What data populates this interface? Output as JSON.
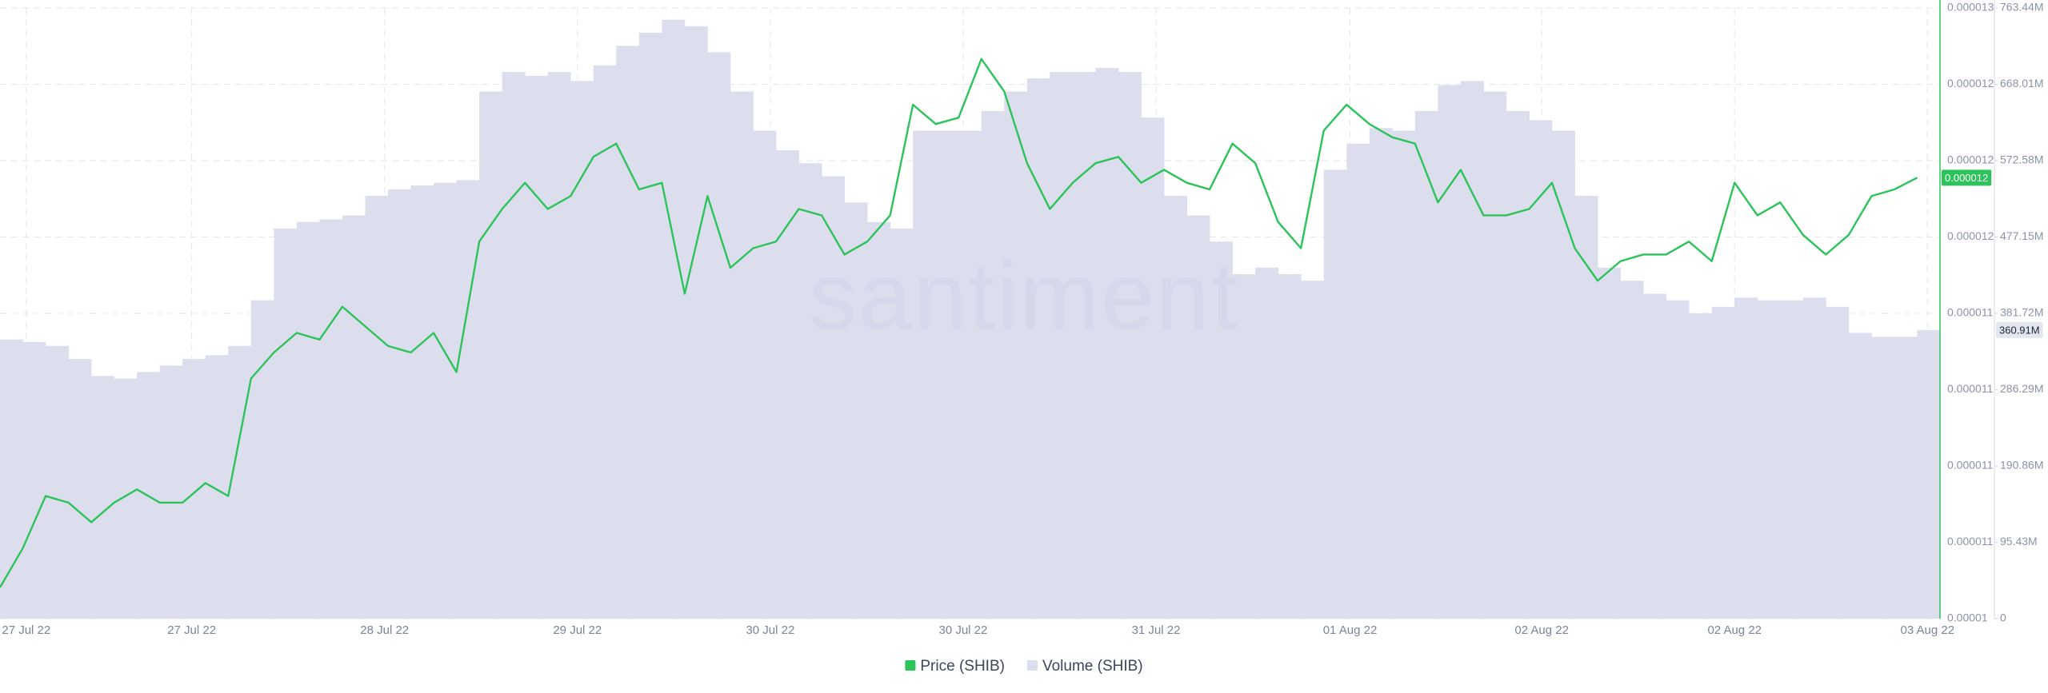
{
  "chart_data": {
    "type": "combo",
    "watermark": "santiment",
    "x": [
      0,
      2,
      4,
      6,
      8,
      10,
      12,
      14,
      16,
      18,
      20,
      22,
      24,
      26,
      28,
      30,
      32,
      34,
      36,
      38,
      40,
      42,
      44,
      46,
      48,
      50,
      52,
      54,
      56,
      58,
      60,
      62,
      64,
      66,
      68,
      70,
      72,
      74,
      76,
      78,
      80,
      82,
      84,
      86,
      88,
      90,
      92,
      94,
      96,
      98,
      100,
      102,
      104,
      106,
      108,
      110,
      112,
      114,
      116,
      118,
      120,
      122,
      124,
      126,
      128,
      130,
      132,
      134,
      136,
      138,
      140,
      142,
      144,
      146,
      148,
      150,
      152,
      154,
      156,
      158,
      160,
      162,
      164,
      166,
      168
    ],
    "xlim": [
      0,
      170
    ],
    "xticks": [
      {
        "value": 2.3,
        "label": "27 Jul 22"
      },
      {
        "value": 16.8,
        "label": "27 Jul 22"
      },
      {
        "value": 33.7,
        "label": "28 Jul 22"
      },
      {
        "value": 50.6,
        "label": "29 Jul 22"
      },
      {
        "value": 67.5,
        "label": "30 Jul 22"
      },
      {
        "value": 84.4,
        "label": "30 Jul 22"
      },
      {
        "value": 101.3,
        "label": "31 Jul 22"
      },
      {
        "value": 118.3,
        "label": "01 Aug 22"
      },
      {
        "value": 135.1,
        "label": "02 Aug 22"
      },
      {
        "value": 152,
        "label": "02 Aug 22"
      },
      {
        "value": 168.9,
        "label": "03 Aug 22"
      }
    ],
    "ylim": [
      1.025e-05,
      1.265e-05
    ],
    "yticks": [
      {
        "value": 1.025e-05,
        "label": "0.00001"
      },
      {
        "value": 1.055e-05,
        "label": "0.000011"
      },
      {
        "value": 1.085e-05,
        "label": "0.000011"
      },
      {
        "value": 1.115e-05,
        "label": "0.000011"
      },
      {
        "value": 1.145e-05,
        "label": "0.000011"
      },
      {
        "value": 1.175e-05,
        "label": "0.000012"
      },
      {
        "value": 1.205e-05,
        "label": "0.000012"
      },
      {
        "value": 1.235e-05,
        "label": "0.000012"
      },
      {
        "value": 1.265e-05,
        "label": "0.000013"
      }
    ],
    "y2lim": [
      0,
      763.44
    ],
    "y2ticks": [
      0,
      {
        "value": 95.43,
        "label": "95.43M"
      },
      {
        "value": 190.86,
        "label": "190.86M"
      },
      {
        "value": 286.29,
        "label": "286.29M"
      },
      {
        "value": 381.72,
        "label": "381.72M"
      },
      {
        "value": 477.15,
        "label": "477.15M"
      },
      {
        "value": 572.58,
        "label": "572.58M"
      },
      {
        "value": 668.01,
        "label": "668.01M"
      },
      {
        "value": 763.44,
        "label": "763.44M"
      }
    ],
    "grid": true,
    "legend": "bottom",
    "series": [
      {
        "name": "Price (SHIB)",
        "type": "line",
        "color": "#2bc35a",
        "last_label": "0.000012",
        "values": [
          1.0373e-05,
          1.0527e-05,
          1.0732e-05,
          1.0706e-05,
          1.0629e-05,
          1.0706e-05,
          1.0758e-05,
          1.0706e-05,
          1.0706e-05,
          1.0783e-05,
          1.0732e-05,
          1.1194e-05,
          1.1296e-05,
          1.1373e-05,
          1.1347e-05,
          1.1476e-05,
          1.1399e-05,
          1.1322e-05,
          1.1296e-05,
          1.1373e-05,
          1.1219e-05,
          1.1732e-05,
          1.186e-05,
          1.1963e-05,
          1.186e-05,
          1.1911e-05,
          1.2065e-05,
          1.2117e-05,
          1.1937e-05,
          1.1963e-05,
          1.1527e-05,
          1.1911e-05,
          1.1629e-05,
          1.1706e-05,
          1.1732e-05,
          1.186e-05,
          1.1835e-05,
          1.1681e-05,
          1.1732e-05,
          1.1835e-05,
          1.227e-05,
          1.2194e-05,
          1.2219e-05,
          1.245e-05,
          1.2322e-05,
          1.204e-05,
          1.186e-05,
          1.1963e-05,
          1.204e-05,
          1.2065e-05,
          1.1963e-05,
          1.2014e-05,
          1.1963e-05,
          1.1937e-05,
          1.2117e-05,
          1.204e-05,
          1.1809e-05,
          1.1706e-05,
          1.2168e-05,
          1.227e-05,
          1.2194e-05,
          1.2142e-05,
          1.2117e-05,
          1.1886e-05,
          1.2014e-05,
          1.1835e-05,
          1.1835e-05,
          1.186e-05,
          1.1963e-05,
          1.1706e-05,
          1.1578e-05,
          1.1655e-05,
          1.1681e-05,
          1.1681e-05,
          1.1732e-05,
          1.1655e-05,
          1.1963e-05,
          1.1835e-05,
          1.1886e-05,
          1.1758e-05,
          1.1681e-05,
          1.1758e-05,
          1.1911e-05,
          1.1937e-05,
          1.1983e-05
        ]
      },
      {
        "name": "Volume (SHIB)",
        "type": "bar",
        "axis": "y2",
        "color": "#dcdeee",
        "last_label": "360.91M",
        "values": [
          349.1,
          345.84,
          340.94,
          324.63,
          303.42,
          300.16,
          308.32,
          316.47,
          324.63,
          329.52,
          340.94,
          398.04,
          487.76,
          495.92,
          499.18,
          504.07,
          528.54,
          536.7,
          541.59,
          544.85,
          548.12,
          659.05,
          683.51,
          678.62,
          683.51,
          672.1,
          691.67,
          716.14,
          732.45,
          748.77,
          740.61,
          707.98,
          659.05,
          610.11,
          585.64,
          569.32,
          553.01,
          520.38,
          495.92,
          487.76,
          610.11,
          610.11,
          610.11,
          634.58,
          659.05,
          675.36,
          683.51,
          683.51,
          688.41,
          683.51,
          626.42,
          528.54,
          504.07,
          471.45,
          430.66,
          438.82,
          430.66,
          422.51,
          561.17,
          593.79,
          613.37,
          610.11,
          634.58,
          667.2,
          672.1,
          659.05,
          634.58,
          623.16,
          610.11,
          528.54,
          438.82,
          422.51,
          406.19,
          398.04,
          381.72,
          389.88,
          401.3,
          398.04,
          398.04,
          401.3,
          389.88,
          357.25,
          352.36,
          352.36,
          360.91
        ]
      }
    ]
  }
}
